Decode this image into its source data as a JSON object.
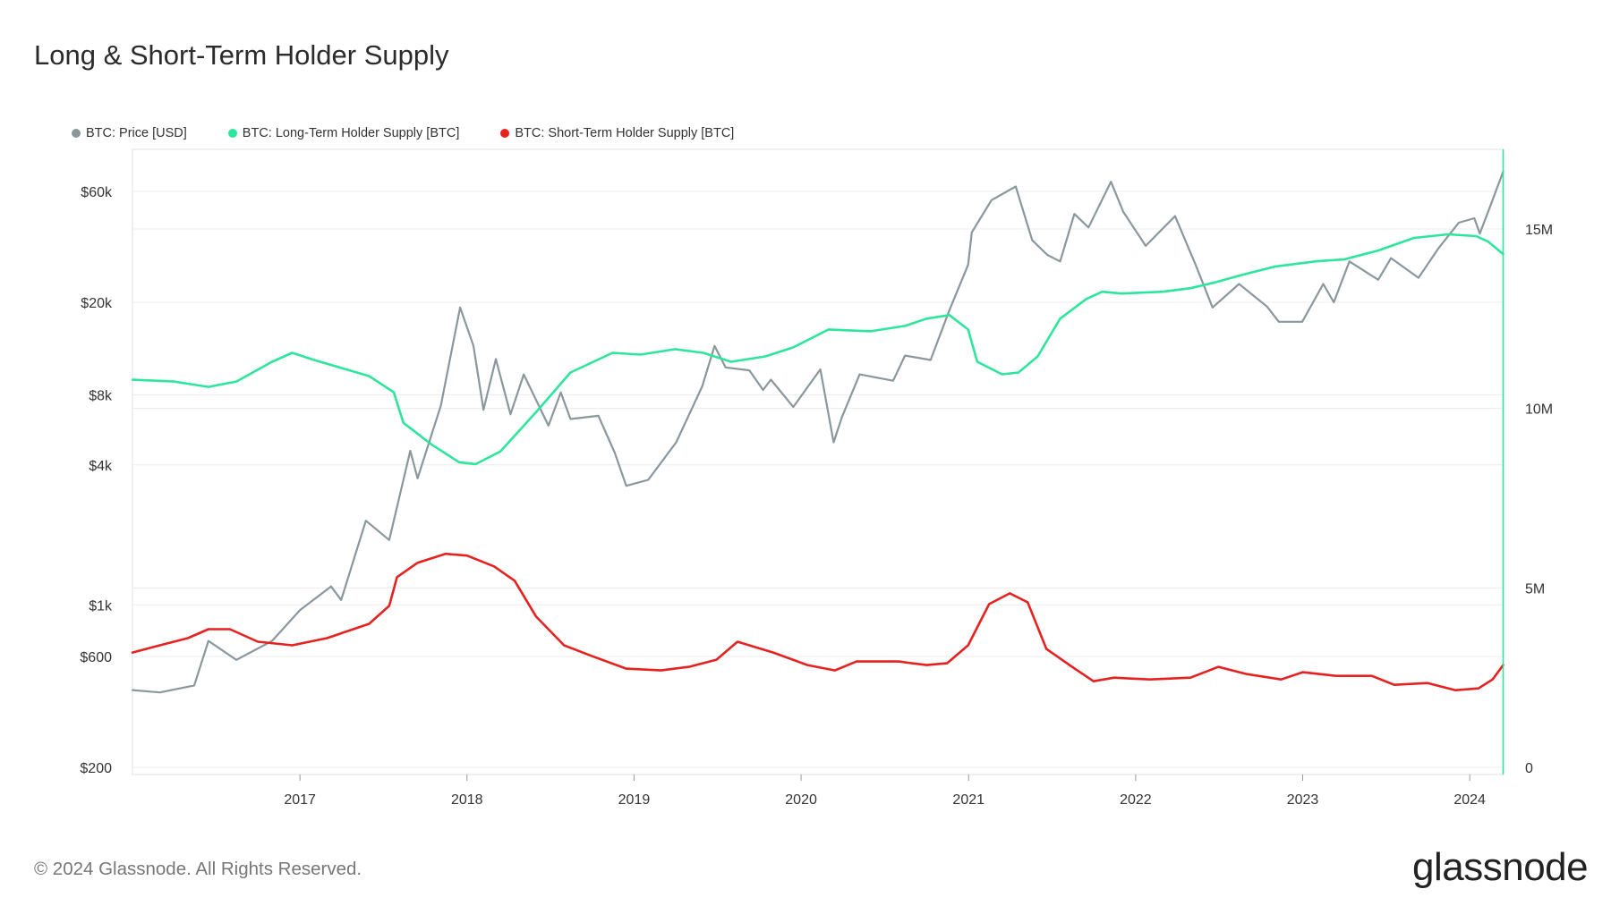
{
  "title": "Long & Short-Term Holder Supply",
  "legend": {
    "price": "BTC: Price [USD]",
    "lth": "BTC: Long-Term Holder Supply [BTC]",
    "sth": "BTC: Short-Term Holder Supply [BTC]"
  },
  "footer": "© 2024 Glassnode. All Rights Reserved.",
  "brand": "glassnode",
  "colors": {
    "price": "#8a979d",
    "lth": "#2ee59d",
    "sth": "#e5221f",
    "grid": "#ececec"
  },
  "chart_data": {
    "type": "line",
    "title": "Long & Short-Term Holder Supply",
    "grid": true,
    "legend_position": "top-left",
    "x_axis": {
      "ticks": [
        "2017",
        "2018",
        "2019",
        "2020",
        "2021",
        "2022",
        "2023",
        "2024"
      ],
      "range": [
        "2016-01-01",
        "2024-03-15"
      ]
    },
    "y_left": {
      "scale": "log",
      "ticks": [
        {
          "value": 200,
          "label": "$200"
        },
        {
          "value": 600,
          "label": "$600"
        },
        {
          "value": 1000,
          "label": "$1k"
        },
        {
          "value": 4000,
          "label": "$4k"
        },
        {
          "value": 8000,
          "label": "$8k"
        },
        {
          "value": 20000,
          "label": "$20k"
        },
        {
          "value": 60000,
          "label": "$60k"
        }
      ]
    },
    "y_right": {
      "scale": "linear",
      "range": [
        0,
        17500000
      ],
      "ticks": [
        {
          "value": 0,
          "label": "0"
        },
        {
          "value": 5000000,
          "label": "5M"
        },
        {
          "value": 10000000,
          "label": "10M"
        },
        {
          "value": 15000000,
          "label": "15M"
        }
      ]
    },
    "series": [
      {
        "name": "BTC: Price [USD]",
        "axis": "left",
        "points": [
          [
            "2016-01-01",
            430
          ],
          [
            "2016-03-01",
            420
          ],
          [
            "2016-05-15",
            450
          ],
          [
            "2016-06-15",
            700
          ],
          [
            "2016-08-15",
            580
          ],
          [
            "2016-11-01",
            700
          ],
          [
            "2017-01-01",
            950
          ],
          [
            "2017-03-10",
            1200
          ],
          [
            "2017-04-01",
            1050
          ],
          [
            "2017-05-25",
            2300
          ],
          [
            "2017-07-15",
            1900
          ],
          [
            "2017-08-30",
            4600
          ],
          [
            "2017-09-15",
            3500
          ],
          [
            "2017-11-05",
            7200
          ],
          [
            "2017-12-17",
            19000
          ],
          [
            "2018-01-15",
            13000
          ],
          [
            "2018-02-06",
            6900
          ],
          [
            "2018-03-05",
            11400
          ],
          [
            "2018-04-06",
            6600
          ],
          [
            "2018-05-05",
            9800
          ],
          [
            "2018-06-28",
            5900
          ],
          [
            "2018-07-25",
            8200
          ],
          [
            "2018-08-15",
            6300
          ],
          [
            "2018-10-15",
            6500
          ],
          [
            "2018-11-20",
            4500
          ],
          [
            "2018-12-15",
            3250
          ],
          [
            "2019-02-01",
            3450
          ],
          [
            "2019-04-03",
            5000
          ],
          [
            "2019-05-30",
            8700
          ],
          [
            "2019-06-26",
            13000
          ],
          [
            "2019-07-20",
            10500
          ],
          [
            "2019-09-10",
            10200
          ],
          [
            "2019-10-10",
            8400
          ],
          [
            "2019-10-27",
            9300
          ],
          [
            "2019-12-15",
            7100
          ],
          [
            "2020-02-12",
            10300
          ],
          [
            "2020-03-12",
            5000
          ],
          [
            "2020-03-30",
            6400
          ],
          [
            "2020-05-08",
            9800
          ],
          [
            "2020-07-20",
            9200
          ],
          [
            "2020-08-15",
            11800
          ],
          [
            "2020-10-10",
            11300
          ],
          [
            "2020-11-20",
            18500
          ],
          [
            "2020-12-31",
            29000
          ],
          [
            "2021-01-08",
            40000
          ],
          [
            "2021-02-20",
            55000
          ],
          [
            "2021-04-14",
            63000
          ],
          [
            "2021-05-20",
            37000
          ],
          [
            "2021-06-22",
            32000
          ],
          [
            "2021-07-20",
            30000
          ],
          [
            "2021-08-20",
            48000
          ],
          [
            "2021-09-20",
            42000
          ],
          [
            "2021-11-08",
            66000
          ],
          [
            "2021-12-05",
            49000
          ],
          [
            "2022-01-23",
            35000
          ],
          [
            "2022-03-28",
            47000
          ],
          [
            "2022-05-12",
            29000
          ],
          [
            "2022-06-18",
            19000
          ],
          [
            "2022-08-15",
            24000
          ],
          [
            "2022-10-15",
            19200
          ],
          [
            "2022-11-10",
            16500
          ],
          [
            "2022-12-31",
            16500
          ],
          [
            "2023-02-15",
            24000
          ],
          [
            "2023-03-10",
            20000
          ],
          [
            "2023-04-13",
            30000
          ],
          [
            "2023-06-15",
            25000
          ],
          [
            "2023-07-13",
            31000
          ],
          [
            "2023-09-11",
            25500
          ],
          [
            "2023-10-24",
            34000
          ],
          [
            "2023-12-08",
            44000
          ],
          [
            "2024-01-11",
            46000
          ],
          [
            "2024-01-23",
            39500
          ],
          [
            "2024-02-15",
            52000
          ],
          [
            "2024-03-14",
            73000
          ]
        ]
      },
      {
        "name": "BTC: Long-Term Holder Supply [BTC]",
        "axis": "right",
        "points": [
          [
            "2016-01-01",
            10800000
          ],
          [
            "2016-04-01",
            10750000
          ],
          [
            "2016-06-15",
            10600000
          ],
          [
            "2016-08-15",
            10750000
          ],
          [
            "2016-11-01",
            11300000
          ],
          [
            "2016-12-15",
            11550000
          ],
          [
            "2017-02-01",
            11350000
          ],
          [
            "2017-06-01",
            10900000
          ],
          [
            "2017-07-25",
            10450000
          ],
          [
            "2017-08-15",
            9600000
          ],
          [
            "2017-10-15",
            9000000
          ],
          [
            "2017-12-15",
            8500000
          ],
          [
            "2018-01-20",
            8450000
          ],
          [
            "2018-03-15",
            8800000
          ],
          [
            "2018-06-01",
            9900000
          ],
          [
            "2018-08-15",
            11000000
          ],
          [
            "2018-11-15",
            11550000
          ],
          [
            "2019-01-15",
            11500000
          ],
          [
            "2019-04-01",
            11650000
          ],
          [
            "2019-06-01",
            11550000
          ],
          [
            "2019-08-01",
            11300000
          ],
          [
            "2019-10-15",
            11450000
          ],
          [
            "2019-12-15",
            11700000
          ],
          [
            "2020-03-01",
            12200000
          ],
          [
            "2020-06-01",
            12150000
          ],
          [
            "2020-08-15",
            12300000
          ],
          [
            "2020-10-01",
            12500000
          ],
          [
            "2020-11-20",
            12600000
          ],
          [
            "2020-12-31",
            12200000
          ],
          [
            "2021-01-20",
            11300000
          ],
          [
            "2021-03-15",
            10950000
          ],
          [
            "2021-04-20",
            11000000
          ],
          [
            "2021-06-01",
            11450000
          ],
          [
            "2021-07-20",
            12500000
          ],
          [
            "2021-09-15",
            13050000
          ],
          [
            "2021-10-20",
            13250000
          ],
          [
            "2021-12-01",
            13200000
          ],
          [
            "2022-03-01",
            13250000
          ],
          [
            "2022-05-01",
            13350000
          ],
          [
            "2022-06-20",
            13500000
          ],
          [
            "2022-08-15",
            13700000
          ],
          [
            "2022-11-01",
            13950000
          ],
          [
            "2023-02-01",
            14100000
          ],
          [
            "2023-04-01",
            14150000
          ],
          [
            "2023-06-15",
            14400000
          ],
          [
            "2023-09-01",
            14750000
          ],
          [
            "2023-11-15",
            14850000
          ],
          [
            "2024-01-15",
            14800000
          ],
          [
            "2024-02-10",
            14650000
          ],
          [
            "2024-03-14",
            14300000
          ]
        ]
      },
      {
        "name": "BTC: Short-Term Holder Supply [BTC]",
        "axis": "right",
        "points": [
          [
            "2016-01-01",
            3200000
          ],
          [
            "2016-03-01",
            3400000
          ],
          [
            "2016-05-01",
            3600000
          ],
          [
            "2016-06-15",
            3850000
          ],
          [
            "2016-08-01",
            3850000
          ],
          [
            "2016-10-01",
            3500000
          ],
          [
            "2016-12-15",
            3400000
          ],
          [
            "2017-03-01",
            3600000
          ],
          [
            "2017-06-01",
            4000000
          ],
          [
            "2017-07-15",
            4500000
          ],
          [
            "2017-08-01",
            5300000
          ],
          [
            "2017-09-15",
            5700000
          ],
          [
            "2017-11-15",
            5950000
          ],
          [
            "2018-01-01",
            5900000
          ],
          [
            "2018-03-01",
            5600000
          ],
          [
            "2018-04-15",
            5200000
          ],
          [
            "2018-06-01",
            4200000
          ],
          [
            "2018-08-01",
            3400000
          ],
          [
            "2018-10-01",
            3100000
          ],
          [
            "2018-12-15",
            2750000
          ],
          [
            "2019-03-01",
            2700000
          ],
          [
            "2019-05-01",
            2800000
          ],
          [
            "2019-06-30",
            3000000
          ],
          [
            "2019-08-15",
            3500000
          ],
          [
            "2019-11-01",
            3200000
          ],
          [
            "2020-01-15",
            2850000
          ],
          [
            "2020-03-15",
            2700000
          ],
          [
            "2020-05-01",
            2950000
          ],
          [
            "2020-08-01",
            2950000
          ],
          [
            "2020-10-01",
            2850000
          ],
          [
            "2020-11-15",
            2900000
          ],
          [
            "2020-12-31",
            3400000
          ],
          [
            "2021-02-15",
            4550000
          ],
          [
            "2021-04-01",
            4850000
          ],
          [
            "2021-05-10",
            4600000
          ],
          [
            "2021-06-20",
            3300000
          ],
          [
            "2021-08-15",
            2800000
          ],
          [
            "2021-10-01",
            2400000
          ],
          [
            "2021-11-15",
            2500000
          ],
          [
            "2022-02-01",
            2450000
          ],
          [
            "2022-05-01",
            2500000
          ],
          [
            "2022-07-01",
            2800000
          ],
          [
            "2022-09-01",
            2600000
          ],
          [
            "2022-11-15",
            2450000
          ],
          [
            "2023-01-01",
            2650000
          ],
          [
            "2023-03-15",
            2550000
          ],
          [
            "2023-06-01",
            2550000
          ],
          [
            "2023-07-20",
            2300000
          ],
          [
            "2023-10-01",
            2350000
          ],
          [
            "2023-12-01",
            2150000
          ],
          [
            "2024-01-20",
            2200000
          ],
          [
            "2024-02-20",
            2450000
          ],
          [
            "2024-03-14",
            2850000
          ]
        ]
      }
    ]
  }
}
